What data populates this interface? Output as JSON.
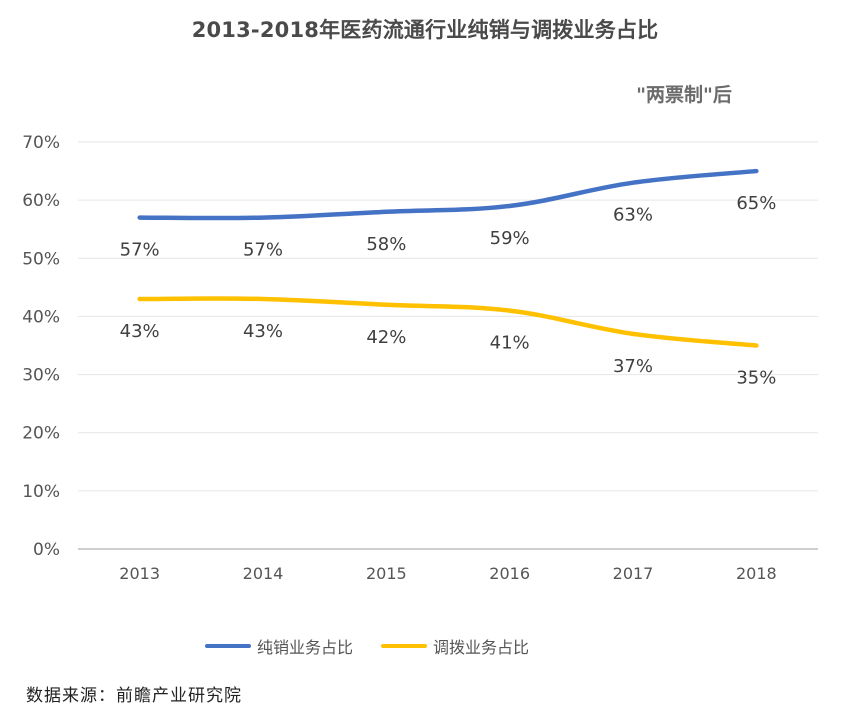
{
  "chart_data": {
    "type": "line",
    "title": "2013-2018年医药流通行业纯销与调拨业务占比",
    "annotation": "\"两票制\"后",
    "categories": [
      "2013",
      "2014",
      "2015",
      "2016",
      "2017",
      "2018"
    ],
    "series": [
      {
        "name": "纯销业务占比",
        "values": [
          57,
          57,
          58,
          59,
          63,
          65
        ],
        "labels": [
          "57%",
          "57%",
          "58%",
          "59%",
          "63%",
          "65%"
        ],
        "color": "#4472c4"
      },
      {
        "name": "调拨业务占比",
        "values": [
          43,
          43,
          42,
          41,
          37,
          35
        ],
        "labels": [
          "43%",
          "43%",
          "42%",
          "41%",
          "37%",
          "35%"
        ],
        "color": "#ffc000"
      }
    ],
    "yticks": [
      "0%",
      "10%",
      "20%",
      "30%",
      "40%",
      "50%",
      "60%",
      "70%"
    ],
    "ylim": [
      0,
      70
    ],
    "grid": true,
    "legend_position": "bottom"
  },
  "source": "数据来源：前瞻产业研究院"
}
